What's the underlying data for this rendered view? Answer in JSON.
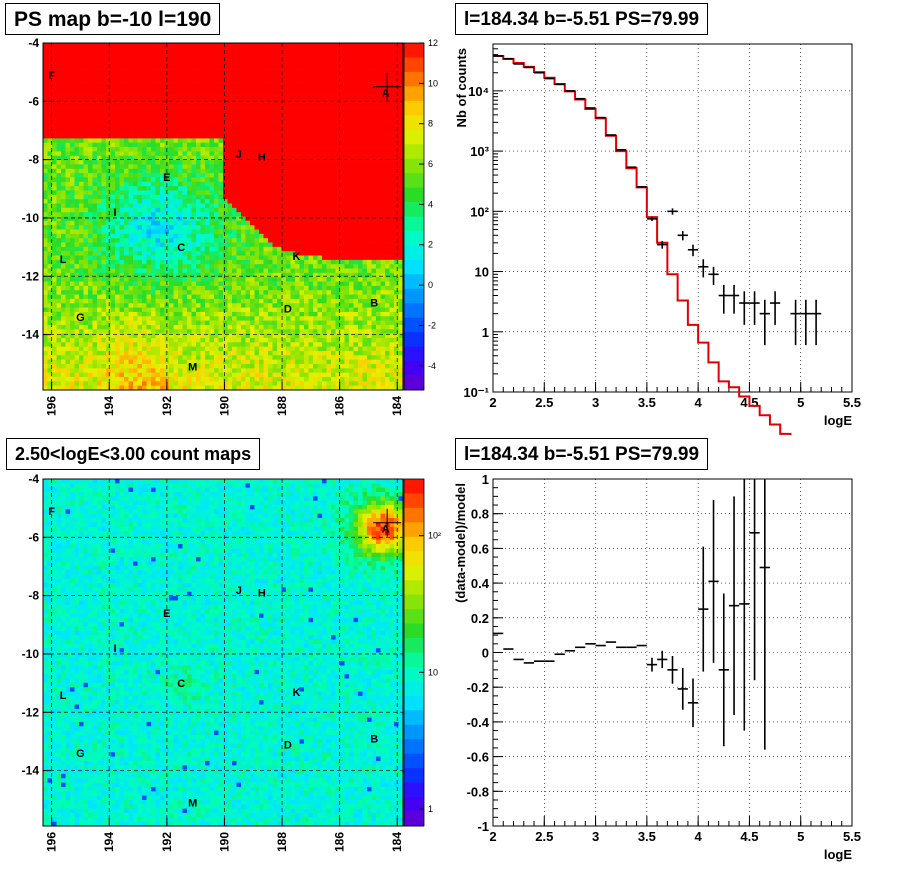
{
  "maps": [
    {
      "title": "PS map b=-10 l=190",
      "kind": "ps",
      "x_ticks": [
        "196",
        "194",
        "192",
        "190",
        "188",
        "186",
        "184"
      ],
      "y_ticks": [
        "-4",
        "-6",
        "-8",
        "-10",
        "-12",
        "-14"
      ],
      "colorbar_ticks": [
        "12",
        "10",
        "8",
        "6",
        "4",
        "2",
        "0",
        "-2",
        "-4"
      ],
      "sources": [
        {
          "label": "A",
          "l": 184.4,
          "b": -5.7
        },
        {
          "label": "B",
          "l": 184.8,
          "b": -12.9
        },
        {
          "label": "C",
          "l": 191.5,
          "b": -11.0
        },
        {
          "label": "D",
          "l": 187.8,
          "b": -13.1
        },
        {
          "label": "E",
          "l": 192.0,
          "b": -8.6
        },
        {
          "label": "F",
          "l": 196.0,
          "b": -5.1
        },
        {
          "label": "G",
          "l": 195.0,
          "b": -13.4
        },
        {
          "label": "H",
          "l": 188.7,
          "b": -7.9
        },
        {
          "label": "I",
          "l": 193.8,
          "b": -9.8
        },
        {
          "label": "J",
          "l": 189.5,
          "b": -7.8
        },
        {
          "label": "K",
          "l": 187.5,
          "b": -11.3
        },
        {
          "label": "L",
          "l": 195.6,
          "b": -11.4
        },
        {
          "label": "M",
          "l": 191.1,
          "b": -15.1
        }
      ]
    },
    {
      "title": "2.50<logE<3.00 count maps",
      "kind": "counts",
      "x_ticks": [
        "196",
        "194",
        "192",
        "190",
        "188",
        "186",
        "184"
      ],
      "y_ticks": [
        "-4",
        "-6",
        "-8",
        "-10",
        "-12",
        "-14"
      ],
      "colorbar_ticks": [
        "10²",
        "10",
        "1"
      ],
      "sources": [
        {
          "label": "A",
          "l": 184.4,
          "b": -5.7
        },
        {
          "label": "B",
          "l": 184.8,
          "b": -12.9
        },
        {
          "label": "C",
          "l": 191.5,
          "b": -11.0
        },
        {
          "label": "D",
          "l": 187.8,
          "b": -13.1
        },
        {
          "label": "E",
          "l": 192.0,
          "b": -8.6
        },
        {
          "label": "F",
          "l": 196.0,
          "b": -5.1
        },
        {
          "label": "G",
          "l": 195.0,
          "b": -13.4
        },
        {
          "label": "H",
          "l": 188.7,
          "b": -7.9
        },
        {
          "label": "I",
          "l": 193.8,
          "b": -9.8
        },
        {
          "label": "J",
          "l": 189.5,
          "b": -7.8
        },
        {
          "label": "K",
          "l": 187.5,
          "b": -11.3
        },
        {
          "label": "L",
          "l": 195.6,
          "b": -11.4
        },
        {
          "label": "M",
          "l": 191.1,
          "b": -15.1
        }
      ]
    }
  ],
  "chart_data": [
    {
      "type": "line",
      "title": "l=184.34 b=-5.51 PS=79.99",
      "xlabel": "logE",
      "ylabel": "Nb of counts",
      "xlim": [
        2,
        5.5
      ],
      "ylim": [
        0.1,
        60000
      ],
      "y_log": true,
      "grid": true,
      "x_ticks": [
        "2",
        "2.5",
        "3",
        "3.5",
        "4",
        "4.5",
        "5",
        "5.5"
      ],
      "y_ticks": [
        "10⁻¹",
        "1",
        "10",
        "10²",
        "10³",
        "10⁴"
      ],
      "model_color": "#e00000",
      "model_edges": [
        2.0,
        2.1,
        2.2,
        2.3,
        2.4,
        2.5,
        2.6,
        2.7,
        2.8,
        2.9,
        3.0,
        3.1,
        3.2,
        3.3,
        3.4,
        3.5,
        3.6,
        3.7,
        3.8,
        3.9,
        4.0,
        4.1,
        4.2,
        4.3,
        4.4,
        4.5,
        4.6,
        4.7,
        4.8,
        4.9,
        5.0,
        5.1,
        5.2,
        5.3,
        5.4,
        5.5
      ],
      "model_values": [
        38000,
        34000,
        29000,
        25000,
        20500,
        16500,
        13000,
        9800,
        7200,
        5000,
        3500,
        1800,
        1000,
        520,
        250,
        80,
        30,
        9,
        3.3,
        1.3,
        0.66,
        0.31,
        0.15
      ],
      "model_values_tail": [
        0.12
      ],
      "data_points": [
        {
          "x": 2.05,
          "y": 38000,
          "yerr": [
            0,
            0
          ]
        },
        {
          "x": 2.15,
          "y": 34000,
          "yerr": [
            0,
            0
          ]
        },
        {
          "x": 2.25,
          "y": 28000,
          "yerr": [
            0,
            0
          ]
        },
        {
          "x": 2.35,
          "y": 24500,
          "yerr": [
            0,
            0
          ]
        },
        {
          "x": 2.45,
          "y": 20000,
          "yerr": [
            0,
            0
          ]
        },
        {
          "x": 2.55,
          "y": 16000,
          "yerr": [
            0,
            0
          ]
        },
        {
          "x": 2.65,
          "y": 12800,
          "yerr": [
            0,
            0
          ]
        },
        {
          "x": 2.75,
          "y": 10000,
          "yerr": [
            0,
            0
          ]
        },
        {
          "x": 2.85,
          "y": 7400,
          "yerr": [
            0,
            0
          ]
        },
        {
          "x": 2.95,
          "y": 5200,
          "yerr": [
            0,
            0
          ]
        },
        {
          "x": 3.05,
          "y": 3600,
          "yerr": [
            0,
            0
          ]
        },
        {
          "x": 3.15,
          "y": 1850,
          "yerr": [
            0,
            0
          ]
        },
        {
          "x": 3.25,
          "y": 1050,
          "yerr": [
            0,
            0
          ]
        },
        {
          "x": 3.35,
          "y": 540,
          "yerr": [
            0,
            0
          ]
        },
        {
          "x": 3.45,
          "y": 255,
          "yerr": [
            0,
            0
          ]
        },
        {
          "x": 3.55,
          "y": 75,
          "yerr": [
            6,
            6
          ]
        },
        {
          "x": 3.65,
          "y": 28,
          "yerr": [
            4,
            4
          ]
        },
        {
          "x": 3.75,
          "y": 100,
          "yerr": [
            12,
            12
          ]
        },
        {
          "x": 3.85,
          "y": 40,
          "yerr": [
            7,
            7
          ]
        },
        {
          "x": 3.95,
          "y": 23,
          "yerr": [
            5,
            5
          ]
        },
        {
          "x": 4.05,
          "y": 12,
          "yerr": [
            4,
            4
          ]
        },
        {
          "x": 4.15,
          "y": 9,
          "yerr": [
            3,
            3
          ]
        },
        {
          "x": 4.25,
          "y": 4,
          "yerr": [
            2,
            2
          ]
        },
        {
          "x": 4.35,
          "y": 4,
          "yerr": [
            2,
            2
          ]
        },
        {
          "x": 4.45,
          "y": 3,
          "yerr": [
            1.7,
            1.7
          ]
        },
        {
          "x": 4.55,
          "y": 3,
          "yerr": [
            1.7,
            1.7
          ]
        },
        {
          "x": 4.65,
          "y": 2,
          "yerr": [
            1.4,
            1.4
          ]
        },
        {
          "x": 4.75,
          "y": 3,
          "yerr": [
            1.7,
            1.7
          ]
        },
        {
          "x": 4.95,
          "y": 2,
          "yerr": [
            1.4,
            1.4
          ]
        },
        {
          "x": 5.05,
          "y": 2,
          "yerr": [
            1.4,
            1.4
          ]
        },
        {
          "x": 5.15,
          "y": 2,
          "yerr": [
            1.4,
            1.4
          ]
        }
      ]
    },
    {
      "type": "scatter",
      "title": "l=184.34 b=-5.51 PS=79.99",
      "xlabel": "logE",
      "ylabel": "(data-model)/model",
      "xlim": [
        2,
        5.5
      ],
      "ylim": [
        -1,
        1
      ],
      "grid": true,
      "x_ticks": [
        "2",
        "2.5",
        "3",
        "3.5",
        "4",
        "4.5",
        "5",
        "5.5"
      ],
      "y_ticks": [
        "1",
        "0.8",
        "0.6",
        "0.4",
        "0.2",
        "0",
        "-0.2",
        "-0.4",
        "-0.6",
        "-0.8",
        "-1"
      ],
      "points": [
        {
          "x": 2.05,
          "y": 0.11,
          "yerr": 0.0
        },
        {
          "x": 2.15,
          "y": 0.02,
          "yerr": 0.0
        },
        {
          "x": 2.25,
          "y": -0.04,
          "yerr": 0.0
        },
        {
          "x": 2.35,
          "y": -0.06,
          "yerr": 0.0
        },
        {
          "x": 2.45,
          "y": -0.05,
          "yerr": 0.0
        },
        {
          "x": 2.55,
          "y": -0.05,
          "yerr": 0.0
        },
        {
          "x": 2.65,
          "y": -0.01,
          "yerr": 0.0
        },
        {
          "x": 2.75,
          "y": 0.01,
          "yerr": 0.0
        },
        {
          "x": 2.85,
          "y": 0.03,
          "yerr": 0.0
        },
        {
          "x": 2.95,
          "y": 0.05,
          "yerr": 0.0
        },
        {
          "x": 3.05,
          "y": 0.04,
          "yerr": 0.0
        },
        {
          "x": 3.15,
          "y": 0.06,
          "yerr": 0.0
        },
        {
          "x": 3.25,
          "y": 0.03,
          "yerr": 0.0
        },
        {
          "x": 3.35,
          "y": 0.03,
          "yerr": 0.0
        },
        {
          "x": 3.45,
          "y": 0.04,
          "yerr": 0.0
        },
        {
          "x": 3.55,
          "y": -0.07,
          "yerr": 0.04
        },
        {
          "x": 3.65,
          "y": -0.04,
          "yerr": 0.05
        },
        {
          "x": 3.75,
          "y": -0.1,
          "yerr": 0.08
        },
        {
          "x": 3.85,
          "y": -0.21,
          "yerr": 0.12
        },
        {
          "x": 3.95,
          "y": -0.29,
          "yerr": 0.14
        },
        {
          "x": 4.05,
          "y": 0.25,
          "yerr": 0.36
        },
        {
          "x": 4.15,
          "y": 0.41,
          "yerr": 0.47
        },
        {
          "x": 4.25,
          "y": -0.1,
          "yerr": 0.44
        },
        {
          "x": 4.35,
          "y": 0.27,
          "yerr": 0.63
        },
        {
          "x": 4.45,
          "y": 0.28,
          "yerr": 0.73
        },
        {
          "x": 4.55,
          "y": 0.69,
          "yerr": 0.85
        },
        {
          "x": 4.65,
          "y": 0.49,
          "yerr": 1.05
        }
      ]
    }
  ]
}
